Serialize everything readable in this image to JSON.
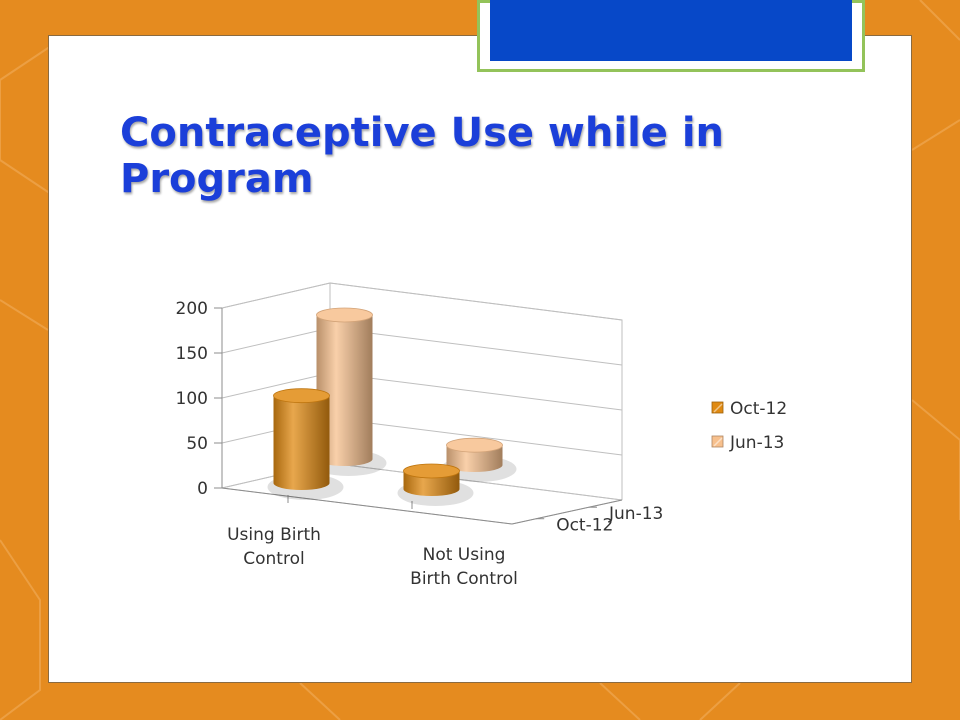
{
  "slide": {
    "title": "Contraceptive Use while in Program",
    "colors": {
      "background": "#e58b1f",
      "title": "#1b3fd9",
      "header_accent": "#0748c8",
      "header_border": "#93c35a"
    }
  },
  "chart_data": {
    "type": "bar",
    "style": "3d-cylinder",
    "categories": [
      "Using Birth Control",
      "Not Using Birth Control"
    ],
    "category_label_lines": [
      [
        "Using Birth",
        "Control"
      ],
      [
        "Not Using",
        "Birth Control"
      ]
    ],
    "series": [
      {
        "name": "Oct-12",
        "values": [
          97,
          20
        ],
        "color": "#e08a12"
      },
      {
        "name": "Jun-13",
        "values": [
          160,
          22
        ],
        "color": "#f7c08d"
      }
    ],
    "depth_labels": [
      "Jun-13",
      "Oct-12"
    ],
    "y_ticks": [
      0,
      50,
      100,
      150,
      200
    ],
    "ylim": [
      0,
      200
    ],
    "grid": true,
    "legend": {
      "position": "right",
      "entries": [
        "Oct-12",
        "Jun-13"
      ]
    }
  }
}
